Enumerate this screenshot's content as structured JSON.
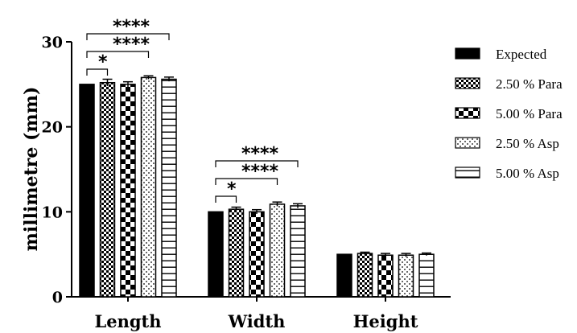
{
  "chart_data": {
    "type": "bar",
    "ylabel": "millimetre (mm)",
    "ylim": [
      0,
      30
    ],
    "yticks": [
      0,
      10,
      20,
      30
    ],
    "categories": [
      "Length",
      "Width",
      "Height"
    ],
    "series": [
      {
        "name": "Expected",
        "values": [
          25.0,
          10.0,
          5.0
        ],
        "errors": [
          0,
          0,
          0
        ],
        "pattern": "solid"
      },
      {
        "name": "2.50 % Para",
        "values": [
          25.2,
          10.3,
          5.1
        ],
        "errors": [
          0.4,
          0.25,
          0.15
        ],
        "pattern": "fine-check"
      },
      {
        "name": "5.00 % Para",
        "values": [
          25.0,
          10.0,
          4.9
        ],
        "errors": [
          0.3,
          0.25,
          0.2
        ],
        "pattern": "checker"
      },
      {
        "name": "2.50 % Asp",
        "values": [
          25.8,
          10.9,
          4.9
        ],
        "errors": [
          0.2,
          0.25,
          0.2
        ],
        "pattern": "dots"
      },
      {
        "name": "5.00 % Asp",
        "values": [
          25.6,
          10.7,
          5.0
        ],
        "errors": [
          0.25,
          0.25,
          0.15
        ],
        "pattern": "hlines"
      }
    ],
    "significance": [
      {
        "category": 0,
        "from": 0,
        "to": 1,
        "label": "*"
      },
      {
        "category": 0,
        "from": 0,
        "to": 3,
        "label": "****"
      },
      {
        "category": 0,
        "from": 0,
        "to": 4,
        "label": "****"
      },
      {
        "category": 1,
        "from": 0,
        "to": 1,
        "label": "*"
      },
      {
        "category": 1,
        "from": 0,
        "to": 3,
        "label": "****"
      },
      {
        "category": 1,
        "from": 0,
        "to": 4,
        "label": "****"
      }
    ],
    "legend_position": "right",
    "grid": false
  }
}
